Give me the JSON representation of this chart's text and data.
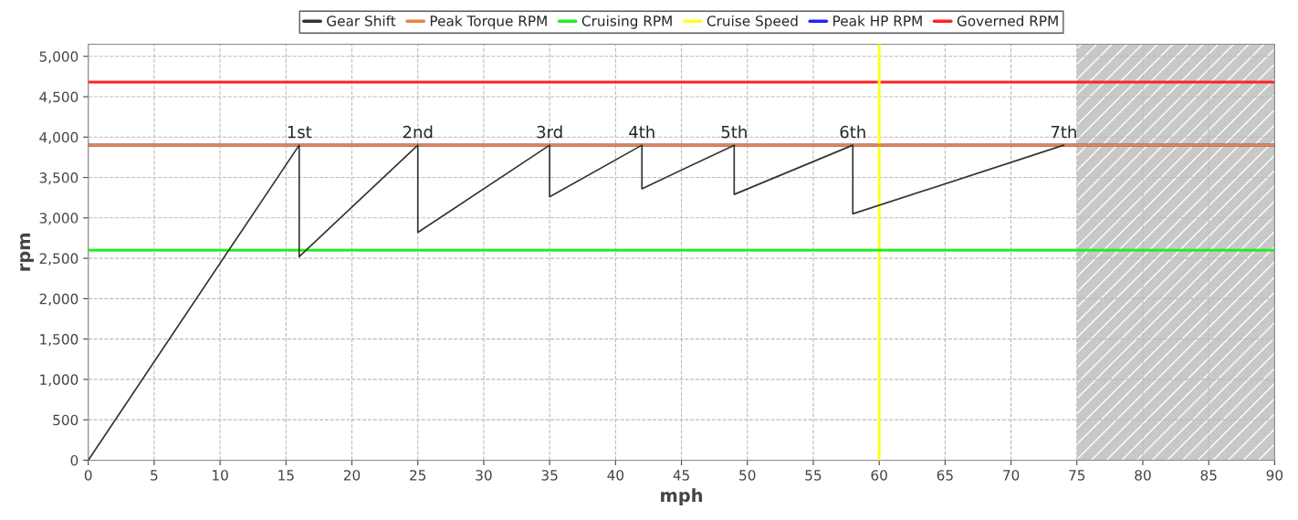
{
  "chart_data": {
    "type": "line",
    "xlabel": "mph",
    "ylabel": "rpm",
    "xlim": [
      0,
      90
    ],
    "xticks": [
      0,
      5,
      10,
      15,
      20,
      25,
      30,
      35,
      40,
      45,
      50,
      55,
      60,
      65,
      70,
      75,
      80,
      85,
      90
    ],
    "ylim": [
      0,
      5150
    ],
    "yticks": [
      {
        "value": 0,
        "label": "0"
      },
      {
        "value": 500,
        "label": "500"
      },
      {
        "value": 1000,
        "label": "1,000"
      },
      {
        "value": 1500,
        "label": "1,500"
      },
      {
        "value": 2000,
        "label": "2,000"
      },
      {
        "value": 2500,
        "label": "2,500"
      },
      {
        "value": 3000,
        "label": "3,000"
      },
      {
        "value": 3500,
        "label": "3,500"
      },
      {
        "value": 4000,
        "label": "4,000"
      },
      {
        "value": 4500,
        "label": "4,500"
      },
      {
        "value": 5000,
        "label": "5,000"
      }
    ],
    "series": [
      {
        "name": "Gear Shift",
        "color": "#333333",
        "x": [
          0,
          16,
          16,
          25,
          25,
          35,
          35,
          42,
          42,
          49,
          49,
          58,
          58,
          74
        ],
        "values": [
          0,
          3900,
          2520,
          3900,
          2820,
          3900,
          3260,
          3900,
          3360,
          3900,
          3290,
          3900,
          3050,
          3900
        ]
      }
    ],
    "ref_lines": [
      {
        "axis": "y",
        "value": 3900,
        "label": "Peak Torque RPM",
        "color": "#e0864a"
      },
      {
        "axis": "y",
        "value": 2600,
        "label": "Cruising RPM",
        "color": "#22ee22"
      },
      {
        "axis": "x",
        "value": 60,
        "label": "Cruise Speed",
        "color": "#ffff22"
      },
      {
        "axis": "y",
        "value": 3900,
        "label": "Peak HP RPM",
        "color": "#2222ff"
      },
      {
        "axis": "y",
        "value": 4680,
        "label": "Governed RPM",
        "color": "#ff2222"
      }
    ],
    "bands": [
      {
        "axis": "x",
        "from": 75,
        "to": 90,
        "color": "#c8c8c8"
      }
    ],
    "annotations": [
      {
        "text": "1st",
        "x": 16,
        "y": 3900
      },
      {
        "text": "2nd",
        "x": 25,
        "y": 3900
      },
      {
        "text": "3rd",
        "x": 35,
        "y": 3900
      },
      {
        "text": "4th",
        "x": 42,
        "y": 3900
      },
      {
        "text": "5th",
        "x": 49,
        "y": 3900
      },
      {
        "text": "6th",
        "x": 58,
        "y": 3900
      },
      {
        "text": "7th",
        "x": 74,
        "y": 3900
      }
    ],
    "grid": true,
    "legend": "top",
    "marker": "none",
    "line_style": "solid"
  }
}
